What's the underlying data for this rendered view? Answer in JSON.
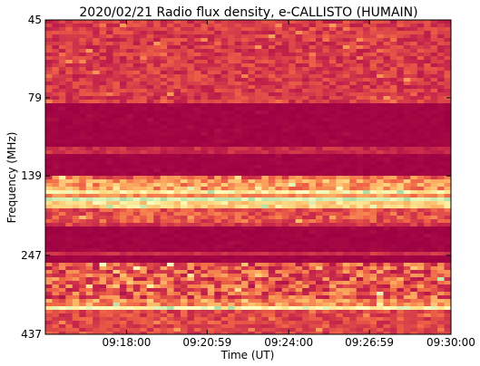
{
  "chart_data": {
    "type": "heatmap",
    "title": "2020/02/21  Radio flux density, e-CALLISTO (HUMAIN)",
    "xlabel": "Time (UT)",
    "ylabel": "Frequency (MHz)",
    "xlim": [
      "09:15:00",
      "09:30:00"
    ],
    "xticks": [
      "09:18:00",
      "09:20:59",
      "09:24:00",
      "09:26:59",
      "09:30:00"
    ],
    "ylim": [
      45,
      437
    ],
    "yticks": [
      45,
      79,
      139,
      247,
      437
    ],
    "yscale": "log",
    "yinverted": true
  }
}
